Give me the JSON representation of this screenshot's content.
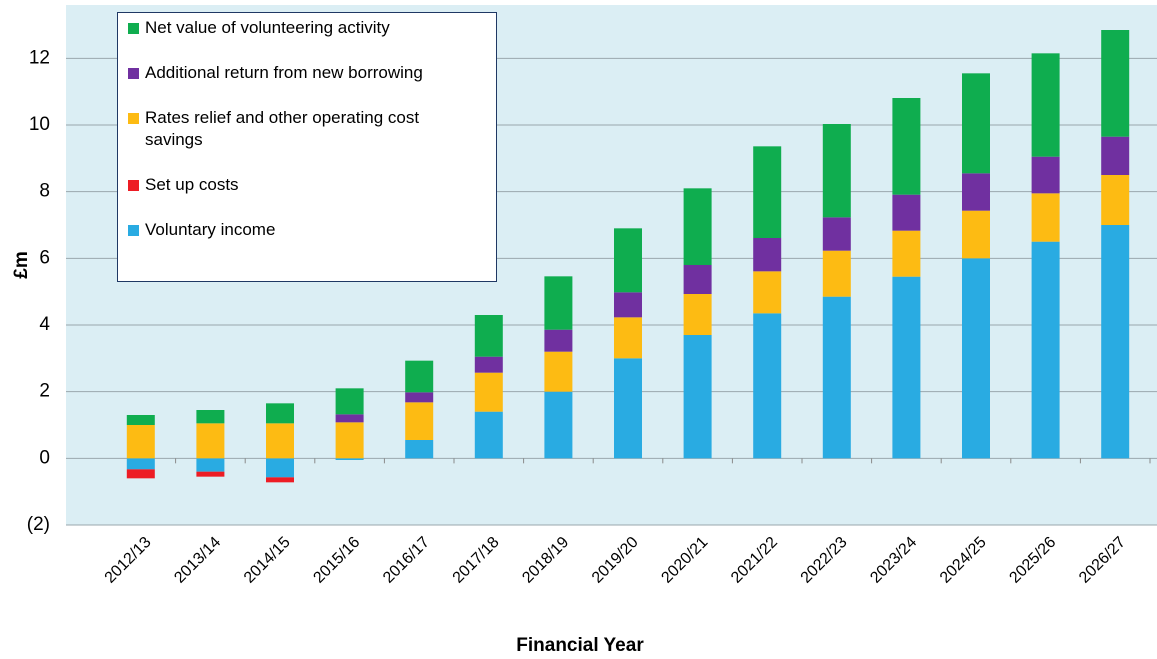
{
  "chart_data": {
    "type": "stacked_bar",
    "x_label": "Financial Year",
    "y_label": "£m",
    "categories": [
      "2012/13",
      "2013/14",
      "2014/15",
      "2015/16",
      "2016/17",
      "2017/18",
      "2018/19",
      "2019/20",
      "2020/21",
      "2021/22",
      "2022/23",
      "2023/24",
      "2024/25",
      "2025/26",
      "2026/27"
    ],
    "series": [
      {
        "name": "Voluntary income",
        "color": "#29abe2",
        "values": [
          -0.33,
          -0.4,
          -0.57,
          -0.05,
          0.55,
          1.4,
          2.0,
          3.0,
          3.7,
          4.35,
          4.85,
          5.45,
          6.0,
          6.5,
          7.0
        ]
      },
      {
        "name": "Set up costs",
        "color": "#ed1c24",
        "values": [
          -0.27,
          -0.15,
          -0.15,
          0,
          0,
          0,
          0,
          0,
          0,
          0,
          0,
          0,
          0,
          0,
          0
        ]
      },
      {
        "name": "Rates relief and other operating cost savings",
        "color": "#fdbb13",
        "values": [
          1.0,
          1.05,
          1.05,
          1.08,
          1.13,
          1.17,
          1.2,
          1.23,
          1.23,
          1.26,
          1.38,
          1.38,
          1.43,
          1.45,
          1.5
        ]
      },
      {
        "name": "Additional return from new borrowing",
        "color": "#7030a0",
        "values": [
          0,
          0,
          0,
          0.24,
          0.3,
          0.48,
          0.66,
          0.75,
          0.87,
          1.0,
          1.0,
          1.08,
          1.12,
          1.1,
          1.15
        ]
      },
      {
        "name": "Net value of volunteering activity",
        "color": "#0fad4f",
        "values": [
          0.3,
          0.4,
          0.6,
          0.78,
          0.95,
          1.25,
          1.6,
          1.92,
          2.3,
          2.75,
          2.8,
          2.9,
          3.0,
          3.1,
          3.2
        ]
      }
    ],
    "ylim": [
      -2,
      13.6
    ],
    "yticks": [
      {
        "value": -2,
        "label": "(2)"
      },
      0,
      2,
      4,
      6,
      8,
      10,
      12
    ],
    "grid": true,
    "legend": "top-left"
  }
}
